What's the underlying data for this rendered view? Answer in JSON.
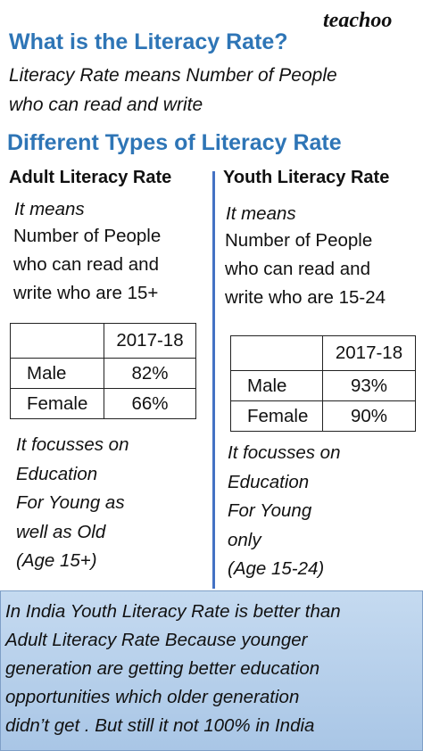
{
  "brand": "teachoo",
  "title": "What is the Literacy Rate?",
  "definition": [
    "Literacy Rate means Number of People",
    "who can read and write"
  ],
  "subtitle": "Different Types of Literacy Rate",
  "columns": [
    {
      "heading": "Adult Literacy Rate",
      "intro": "It means",
      "meaning": [
        "Number of People",
        "who can read and",
        "write who are 15+"
      ],
      "table": {
        "header": "2017-18",
        "rows": [
          [
            "Male",
            "82%"
          ],
          [
            "Female",
            "66%"
          ]
        ]
      },
      "focus": [
        "It focusses on",
        "Education",
        "For Young as",
        "well as Old",
        "(Age 15+)"
      ]
    },
    {
      "heading": "Youth Literacy Rate",
      "intro": "It means",
      "meaning": [
        "Number of People",
        "who can read and",
        "write who are 15-24"
      ],
      "table": {
        "header": "2017-18",
        "rows": [
          [
            "Male",
            "93%"
          ],
          [
            "Female",
            "90%"
          ]
        ]
      },
      "focus": [
        "It focusses on",
        "Education",
        "For Young",
        "only",
        "(Age 15-24)"
      ]
    }
  ],
  "footer": [
    "In India Youth Literacy Rate is better than",
    "Adult Literacy Rate Because younger",
    "generation are getting better education",
    "opportunities which older generation",
    "didn’t get . But still it not 100% in India"
  ]
}
